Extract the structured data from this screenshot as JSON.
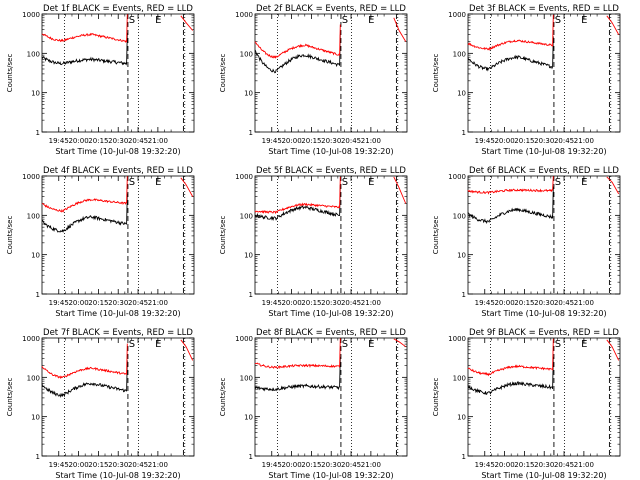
{
  "chart_data": {
    "type": "line",
    "common": {
      "ylabel": "Counts/sec",
      "xlabel": "Start Time (10-Jul-08 19:32:20)",
      "yscale": "log",
      "ylim": [
        1,
        1000
      ],
      "yticks": [
        "1",
        "10",
        "100",
        "1000"
      ],
      "xlim_minutes": [
        0,
        115
      ],
      "xtick_labels": [
        "19:45",
        "20:00",
        "20:15",
        "20:30",
        "20:45",
        "21:00"
      ],
      "xtick_minutes": [
        12.67,
        27.67,
        42.67,
        57.67,
        72.67,
        87.67
      ],
      "markers": [
        {
          "label": "S",
          "minute": 68
        },
        {
          "label": "E",
          "minute": 88
        }
      ],
      "dotted_line_minutes": [
        17,
        73,
        108
      ],
      "dashed_line_minutes": [
        65,
        107
      ],
      "series_colors": {
        "events": "#000000",
        "lld": "#ff0000"
      }
    },
    "panels": [
      {
        "title": "Det 1f BLACK = Events, RED = LLD",
        "events": {
          "start": 80,
          "dip": 55,
          "hump": 70,
          "end": 55
        },
        "lld": {
          "start": 320,
          "dip": 210,
          "hump": 300,
          "end": 200,
          "post": [
            900,
            600,
            380
          ]
        }
      },
      {
        "title": "Det 2f BLACK = Events, RED = LLD",
        "events": {
          "start": 120,
          "dip": 35,
          "hump": 90,
          "end": 50
        },
        "lld": {
          "start": 200,
          "dip": 80,
          "hump": 160,
          "end": 90,
          "post": [
            800,
            380,
            200
          ]
        }
      },
      {
        "title": "Det 3f BLACK = Events, RED = LLD",
        "events": {
          "start": 75,
          "dip": 40,
          "hump": 80,
          "end": 45
        },
        "lld": {
          "start": 180,
          "dip": 130,
          "hump": 210,
          "end": 160,
          "post": [
            900,
            600,
            300
          ]
        }
      },
      {
        "title": "Det 4f BLACK = Events, RED = LLD",
        "events": {
          "start": 70,
          "dip": 40,
          "hump": 90,
          "end": 60
        },
        "lld": {
          "start": 200,
          "dip": 130,
          "hump": 250,
          "end": 200,
          "post": [
            900,
            600,
            300
          ]
        }
      },
      {
        "title": "Det 5f BLACK = Events, RED = LLD",
        "events": {
          "start": 100,
          "dip": 85,
          "hump": 160,
          "end": 100
        },
        "lld": {
          "start": 130,
          "dip": 120,
          "hump": 190,
          "end": 160,
          "post": [
            950,
            500,
            200
          ]
        }
      },
      {
        "title": "Det 6f BLACK = Events, RED = LLD",
        "events": {
          "start": 110,
          "dip": 70,
          "hump": 140,
          "end": 90
        },
        "lld": {
          "start": 420,
          "dip": 380,
          "hump": 440,
          "end": 420,
          "post": [
            950,
            700,
            350
          ]
        }
      },
      {
        "title": "Det 7f BLACK = Events, RED = LLD",
        "events": {
          "start": 65,
          "dip": 35,
          "hump": 70,
          "end": 45
        },
        "lld": {
          "start": 190,
          "dip": 100,
          "hump": 170,
          "end": 120,
          "post": [
            900,
            600,
            270
          ]
        }
      },
      {
        "title": "Det 8f BLACK = Events, RED = LLD",
        "events": {
          "start": 55,
          "dip": 50,
          "hump": 60,
          "end": 55
        },
        "lld": {
          "start": 230,
          "dip": 180,
          "hump": 200,
          "end": 190,
          "post": [
            950,
            800,
            600
          ]
        }
      },
      {
        "title": "Det 9f BLACK = Events, RED = LLD",
        "events": {
          "start": 60,
          "dip": 40,
          "hump": 70,
          "end": 55
        },
        "lld": {
          "start": 170,
          "dip": 120,
          "hump": 190,
          "end": 160,
          "post": [
            900,
            600,
            270
          ]
        }
      }
    ]
  }
}
